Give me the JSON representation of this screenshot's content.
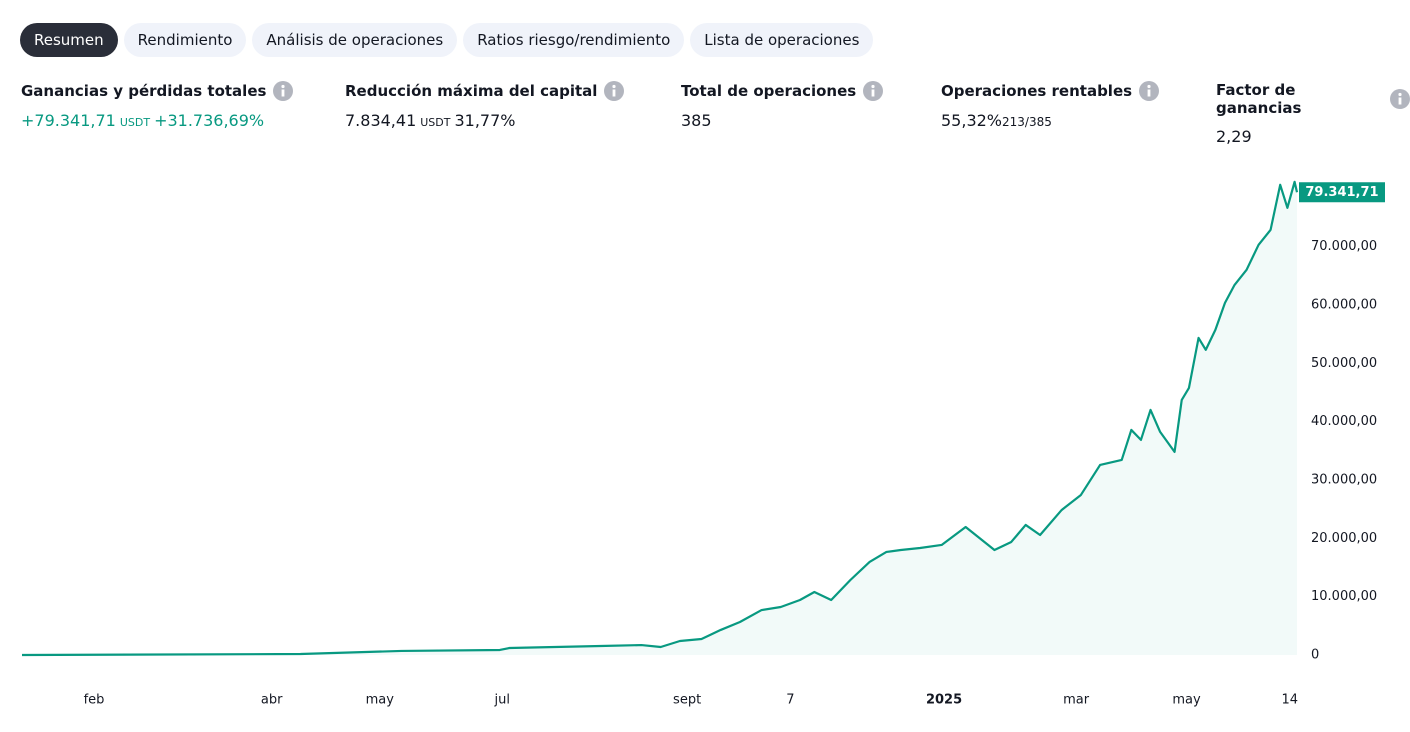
{
  "tabs": [
    "Resumen",
    "Rendimiento",
    "Análisis de operaciones",
    "Ratios riesgo/rendimiento",
    "Lista de operaciones"
  ],
  "active_tab": 0,
  "stats": [
    {
      "label": "Ganancias y pérdidas totales",
      "value": "+79.341,71",
      "unit": "USDT",
      "extra": "+31.736,69%",
      "positive": true
    },
    {
      "label": "Reducción máxima del capital",
      "value": "7.834,41",
      "unit": "USDT",
      "extra": "31,77%"
    },
    {
      "label": "Total de operaciones",
      "value": "385"
    },
    {
      "label": "Operaciones rentables",
      "value": "55,32%",
      "small": "213/385"
    },
    {
      "label": "Factor de ganancias",
      "value": "2,29"
    }
  ],
  "chart_data": {
    "type": "area",
    "color": "#089981",
    "x": [
      0,
      116,
      158,
      199,
      203,
      241,
      258,
      266,
      274,
      283,
      291,
      299,
      308,
      316,
      324,
      330,
      337,
      345,
      353,
      360,
      366,
      374,
      383,
      393,
      405,
      412,
      418,
      424,
      433,
      441,
      449,
      458,
      462,
      466,
      470,
      474,
      480,
      483,
      486,
      490,
      493,
      497,
      501,
      505,
      510,
      515,
      520,
      524,
      527,
      530,
      531
    ],
    "values": [
      0,
      170,
      700,
      860,
      1200,
      1540,
      1700,
      1370,
      2400,
      2740,
      4300,
      5660,
      7700,
      8230,
      9430,
      10800,
      9430,
      12860,
      15950,
      17670,
      18000,
      18350,
      18870,
      21950,
      18000,
      19380,
      22300,
      20580,
      24870,
      27440,
      32590,
      33450,
      38590,
      36880,
      42020,
      38250,
      34820,
      43740,
      45800,
      54370,
      52320,
      55750,
      60380,
      63460,
      66040,
      70330,
      72900,
      80620,
      76670,
      81130,
      79341.71
    ],
    "last_value_label": "79.341,71",
    "xlim": [
      0,
      531
    ],
    "xticks": [
      {
        "value": 30,
        "label": "feb"
      },
      {
        "value": 104,
        "label": "abr"
      },
      {
        "value": 149,
        "label": "may"
      },
      {
        "value": 200,
        "label": "jul"
      },
      {
        "value": 277,
        "label": "sept"
      },
      {
        "value": 320,
        "label": "7"
      },
      {
        "value": 384,
        "label": "2025"
      },
      {
        "value": 439,
        "label": "mar"
      },
      {
        "value": 485,
        "label": "may"
      },
      {
        "value": 528,
        "label": "14"
      }
    ],
    "ylim": [
      0,
      82300
    ],
    "yticks": [
      0,
      {
        "value": 10000,
        "label": "10.000,00"
      },
      {
        "value": 20000,
        "label": "20.000,00"
      },
      {
        "value": 30000,
        "label": "30.000,00"
      },
      {
        "value": 40000,
        "label": "40.000,00"
      },
      {
        "value": 50000,
        "label": "50.000,00"
      },
      {
        "value": 60000,
        "label": "60.000,00"
      },
      {
        "value": 70000,
        "label": "70.000,00"
      }
    ],
    "grid": false
  }
}
